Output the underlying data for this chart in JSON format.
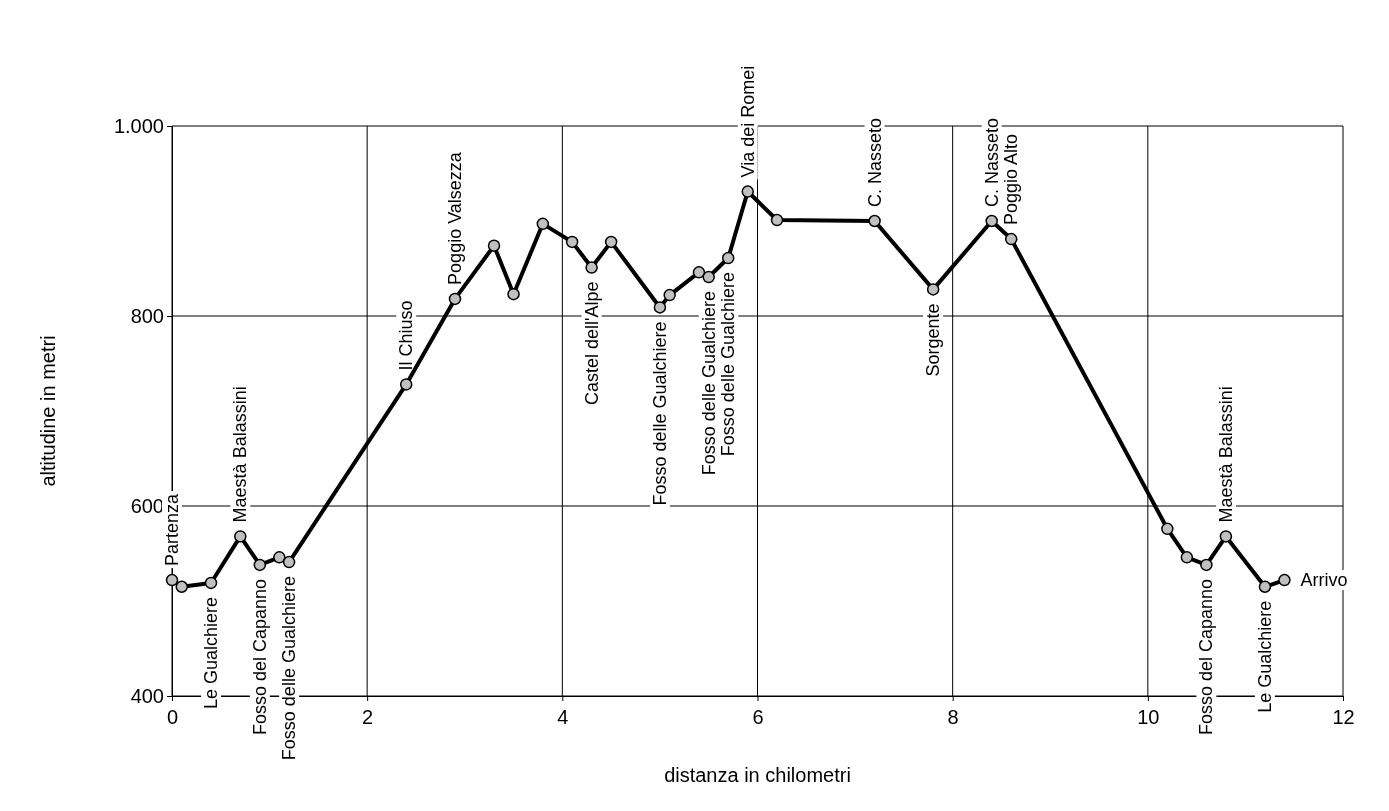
{
  "chart_data": {
    "type": "line",
    "xlabel": "distanza in chilometri",
    "ylabel": "altitudine  in metri",
    "xlim": [
      0,
      12
    ],
    "xticks": [
      0,
      2,
      4,
      6,
      8,
      10,
      12
    ],
    "ylim": [
      400,
      1000
    ],
    "yticks": [
      400,
      600,
      800,
      {
        "value": 1000,
        "label": "1.000"
      }
    ],
    "grid": true,
    "marker": "circle",
    "line_style": "solid",
    "series": [
      {
        "color": "#000000",
        "x": [
          0,
          0.1,
          0.4,
          0.7,
          0.9,
          1.1,
          1.2,
          2.4,
          2.9,
          3.3,
          3.5,
          3.8,
          4.1,
          4.3,
          4.5,
          5.0,
          5.1,
          5.4,
          5.5,
          5.7,
          5.9,
          6.2,
          7.2,
          7.8,
          8.4,
          8.6,
          10.2,
          10.4,
          10.6,
          10.8,
          11.2,
          11.4
        ],
        "values": [
          522,
          515,
          519,
          568,
          538,
          546,
          541,
          728,
          818,
          874,
          823,
          897,
          878,
          851,
          878,
          809,
          822,
          846,
          841,
          861,
          931,
          901,
          900,
          828,
          900,
          881,
          576,
          546,
          538,
          568,
          515,
          522
        ]
      }
    ],
    "annotations": [
      {
        "text": "Partenza",
        "x": 0,
        "y": 522
      },
      {
        "text": "Le Gualchiere",
        "x": 0.4,
        "y": 519
      },
      {
        "text": "Maestà Balassini",
        "x": 0.7,
        "y": 568
      },
      {
        "text": "Fosso del Capanno",
        "x": 0.9,
        "y": 538
      },
      {
        "text": "Fosso delle Gualchiere",
        "x": 1.2,
        "y": 541
      },
      {
        "text": "Il Chiuso",
        "x": 2.4,
        "y": 728
      },
      {
        "text": "Poggio Valsezza",
        "x": 2.9,
        "y": 818
      },
      {
        "text": "Castel dell'Alpe",
        "x": 4.3,
        "y": 851
      },
      {
        "text": "Fosso delle Gualchiere",
        "x": 5.0,
        "y": 809
      },
      {
        "text": "Fosso delle Gualchiere",
        "x": 5.5,
        "y": 841
      },
      {
        "text": "Fosso delle Gualchiere",
        "x": 5.7,
        "y": 861
      },
      {
        "text": "Via dei Romei",
        "x": 5.9,
        "y": 931
      },
      {
        "text": "C. Nasseto",
        "x": 7.2,
        "y": 900
      },
      {
        "text": "Sorgente",
        "x": 7.8,
        "y": 828
      },
      {
        "text": "C. Nasseto",
        "x": 8.4,
        "y": 900
      },
      {
        "text": "Poggio Alto",
        "x": 8.6,
        "y": 881
      },
      {
        "text": "Fosso del Capanno",
        "x": 10.6,
        "y": 538
      },
      {
        "text": "Maestà Balassini",
        "x": 10.8,
        "y": 568
      },
      {
        "text": "Le Gualchiere",
        "x": 11.2,
        "y": 515
      },
      {
        "text": "Arrivo",
        "x": 11.4,
        "y": 522
      }
    ]
  }
}
